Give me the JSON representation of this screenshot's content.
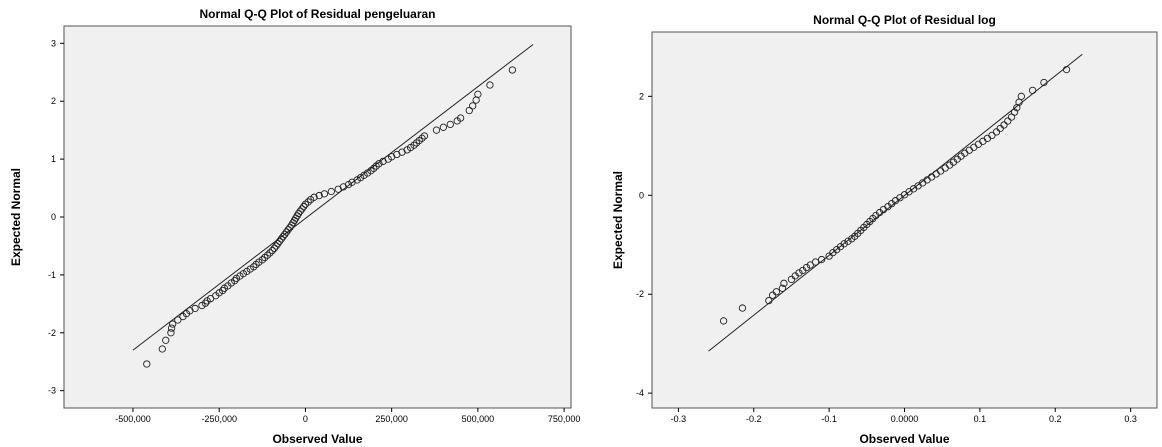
{
  "chart_data": [
    {
      "type": "scatter",
      "title": "Normal Q-Q Plot of Residual pengeluaran",
      "xlabel": "Observed Value",
      "ylabel": "Expected Normal",
      "xlim": [
        -700000,
        770000
      ],
      "ylim": [
        -3.3,
        3.3
      ],
      "x_ticks": [
        -500000,
        -250000,
        0,
        250000,
        500000,
        750000
      ],
      "x_tick_labels": [
        "-500,000",
        "-250,000",
        "0",
        "250,000",
        "500,000",
        "750,000"
      ],
      "y_ticks": [
        -3,
        -2,
        -1,
        0,
        1,
        2,
        3
      ],
      "y_tick_labels": [
        "-3",
        "-2",
        "-1",
        "0",
        "1",
        "2",
        "3"
      ],
      "grid": false,
      "plot_background": "#f0f0f0",
      "reference_line": {
        "x": [
          -500000,
          660000
        ],
        "y": [
          -2.3,
          2.98
        ]
      },
      "series": [
        {
          "points": [
            [
              -460000,
              -2.54
            ],
            [
              -415000,
              -2.28
            ],
            [
              -405000,
              -2.13
            ],
            [
              -390000,
              -2.0
            ],
            [
              -388000,
              -1.92
            ],
            [
              -385000,
              -1.85
            ],
            [
              -370000,
              -1.78
            ],
            [
              -355000,
              -1.72
            ],
            [
              -345000,
              -1.67
            ],
            [
              -335000,
              -1.62
            ],
            [
              -320000,
              -1.58
            ],
            [
              -300000,
              -1.53
            ],
            [
              -290000,
              -1.49
            ],
            [
              -285000,
              -1.45
            ],
            [
              -275000,
              -1.41
            ],
            [
              -260000,
              -1.36
            ],
            [
              -250000,
              -1.31
            ],
            [
              -240000,
              -1.27
            ],
            [
              -235000,
              -1.23
            ],
            [
              -225000,
              -1.19
            ],
            [
              -215000,
              -1.14
            ],
            [
              -205000,
              -1.1
            ],
            [
              -200000,
              -1.06
            ],
            [
              -190000,
              -1.02
            ],
            [
              -180000,
              -0.98
            ],
            [
              -170000,
              -0.94
            ],
            [
              -160000,
              -0.9
            ],
            [
              -150000,
              -0.86
            ],
            [
              -143000,
              -0.82
            ],
            [
              -135000,
              -0.78
            ],
            [
              -125000,
              -0.74
            ],
            [
              -118000,
              -0.7
            ],
            [
              -110000,
              -0.66
            ],
            [
              -103000,
              -0.62
            ],
            [
              -96000,
              -0.58
            ],
            [
              -90000,
              -0.54
            ],
            [
              -85000,
              -0.5
            ],
            [
              -80000,
              -0.46
            ],
            [
              -75000,
              -0.42
            ],
            [
              -70000,
              -0.38
            ],
            [
              -65000,
              -0.34
            ],
            [
              -60000,
              -0.3
            ],
            [
              -55000,
              -0.26
            ],
            [
              -50000,
              -0.22
            ],
            [
              -45000,
              -0.18
            ],
            [
              -40000,
              -0.14
            ],
            [
              -36000,
              -0.1
            ],
            [
              -32000,
              -0.06
            ],
            [
              -28000,
              -0.02
            ],
            [
              -24000,
              0.02
            ],
            [
              -20000,
              0.06
            ],
            [
              -15000,
              0.1
            ],
            [
              -10000,
              0.14
            ],
            [
              -5000,
              0.18
            ],
            [
              0,
              0.22
            ],
            [
              8000,
              0.26
            ],
            [
              15000,
              0.3
            ],
            [
              25000,
              0.34
            ],
            [
              40000,
              0.37
            ],
            [
              55000,
              0.4
            ],
            [
              75000,
              0.44
            ],
            [
              95000,
              0.48
            ],
            [
              110000,
              0.52
            ],
            [
              125000,
              0.56
            ],
            [
              135000,
              0.6
            ],
            [
              150000,
              0.64
            ],
            [
              160000,
              0.68
            ],
            [
              170000,
              0.72
            ],
            [
              180000,
              0.76
            ],
            [
              190000,
              0.8
            ],
            [
              198000,
              0.84
            ],
            [
              205000,
              0.88
            ],
            [
              213000,
              0.92
            ],
            [
              225000,
              0.96
            ],
            [
              240000,
              1.0
            ],
            [
              250000,
              1.04
            ],
            [
              265000,
              1.08
            ],
            [
              280000,
              1.12
            ],
            [
              295000,
              1.16
            ],
            [
              305000,
              1.2
            ],
            [
              315000,
              1.24
            ],
            [
              322000,
              1.28
            ],
            [
              330000,
              1.32
            ],
            [
              338000,
              1.36
            ],
            [
              345000,
              1.4
            ],
            [
              380000,
              1.5
            ],
            [
              400000,
              1.55
            ],
            [
              420000,
              1.6
            ],
            [
              440000,
              1.66
            ],
            [
              450000,
              1.71
            ],
            [
              475000,
              1.84
            ],
            [
              485000,
              1.92
            ],
            [
              495000,
              2.02
            ],
            [
              500000,
              2.12
            ],
            [
              535000,
              2.28
            ],
            [
              600000,
              2.54
            ]
          ]
        }
      ]
    },
    {
      "type": "scatter",
      "title": "Normal Q-Q Plot of Residual log",
      "xlabel": "Observed Value",
      "ylabel": "Expected Normal",
      "xlim": [
        -0.335,
        0.335
      ],
      "ylim": [
        -4.3,
        3.3
      ],
      "x_ticks": [
        -0.3,
        -0.2,
        -0.1,
        0,
        0.1,
        0.2,
        0.3
      ],
      "x_tick_labels": [
        "-0.3",
        "-0.2",
        "-0.1",
        "0.0000",
        "0.1",
        "0.2",
        "0.3"
      ],
      "y_ticks": [
        -4,
        -2,
        0,
        2
      ],
      "y_tick_labels": [
        "-4",
        "-2",
        "0",
        "2"
      ],
      "grid": false,
      "plot_background": "#f0f0f0",
      "reference_line": {
        "x": [
          -0.26,
          0.236
        ],
        "y": [
          -3.15,
          2.85
        ]
      },
      "series": [
        {
          "points": [
            [
              -0.24,
              -2.54
            ],
            [
              -0.215,
              -2.28
            ],
            [
              -0.18,
              -2.13
            ],
            [
              -0.175,
              -2.02
            ],
            [
              -0.17,
              -1.95
            ],
            [
              -0.162,
              -1.88
            ],
            [
              -0.16,
              -1.78
            ],
            [
              -0.15,
              -1.7
            ],
            [
              -0.145,
              -1.63
            ],
            [
              -0.14,
              -1.57
            ],
            [
              -0.135,
              -1.52
            ],
            [
              -0.13,
              -1.46
            ],
            [
              -0.125,
              -1.41
            ],
            [
              -0.118,
              -1.35
            ],
            [
              -0.11,
              -1.3
            ],
            [
              -0.1,
              -1.23
            ],
            [
              -0.095,
              -1.16
            ],
            [
              -0.09,
              -1.1
            ],
            [
              -0.085,
              -1.04
            ],
            [
              -0.08,
              -0.98
            ],
            [
              -0.075,
              -0.93
            ],
            [
              -0.07,
              -0.88
            ],
            [
              -0.066,
              -0.83
            ],
            [
              -0.062,
              -0.77
            ],
            [
              -0.058,
              -0.71
            ],
            [
              -0.054,
              -0.65
            ],
            [
              -0.05,
              -0.59
            ],
            [
              -0.046,
              -0.53
            ],
            [
              -0.042,
              -0.47
            ],
            [
              -0.038,
              -0.41
            ],
            [
              -0.033,
              -0.35
            ],
            [
              -0.028,
              -0.29
            ],
            [
              -0.022,
              -0.23
            ],
            [
              -0.017,
              -0.17
            ],
            [
              -0.012,
              -0.11
            ],
            [
              -0.006,
              -0.05
            ],
            [
              0.0,
              0.01
            ],
            [
              0.006,
              0.07
            ],
            [
              0.012,
              0.13
            ],
            [
              0.018,
              0.19
            ],
            [
              0.024,
              0.25
            ],
            [
              0.03,
              0.31
            ],
            [
              0.036,
              0.37
            ],
            [
              0.042,
              0.43
            ],
            [
              0.048,
              0.49
            ],
            [
              0.054,
              0.55
            ],
            [
              0.06,
              0.61
            ],
            [
              0.065,
              0.67
            ],
            [
              0.07,
              0.73
            ],
            [
              0.075,
              0.79
            ],
            [
              0.08,
              0.85
            ],
            [
              0.086,
              0.91
            ],
            [
              0.092,
              0.97
            ],
            [
              0.098,
              1.03
            ],
            [
              0.104,
              1.09
            ],
            [
              0.11,
              1.15
            ],
            [
              0.116,
              1.21
            ],
            [
              0.122,
              1.28
            ],
            [
              0.127,
              1.35
            ],
            [
              0.132,
              1.42
            ],
            [
              0.137,
              1.5
            ],
            [
              0.142,
              1.58
            ],
            [
              0.146,
              1.68
            ],
            [
              0.149,
              1.77
            ],
            [
              0.152,
              1.88
            ],
            [
              0.155,
              2.0
            ],
            [
              0.17,
              2.12
            ],
            [
              0.185,
              2.28
            ],
            [
              0.215,
              2.54
            ]
          ]
        }
      ]
    }
  ]
}
